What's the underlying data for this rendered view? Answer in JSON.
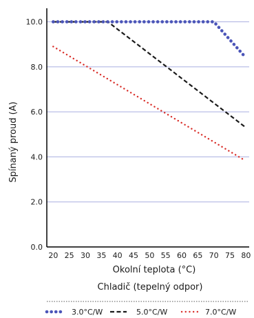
{
  "chart_data": {
    "type": "line",
    "xlabel": "Okolní teplota (°C)",
    "ylabel": "Spínaný proud (A)",
    "xlim": [
      18,
      81
    ],
    "ylim": [
      0,
      10.6
    ],
    "x_ticks": [
      "20",
      "25",
      "30",
      "35",
      "40",
      "45",
      "50",
      "55",
      "60",
      "65",
      "70",
      "75",
      "80"
    ],
    "y_ticks": [
      "0.0",
      "2.0",
      "4.0",
      "6.0",
      "8.0",
      "10.0"
    ],
    "grid": "horizontal",
    "legend_title": "Chladič (tepelný odpor)",
    "legend_position": "bottom",
    "series": [
      {
        "name": "3.0°C/W",
        "style": "dotted-round",
        "color": "#4b55b8",
        "points": [
          [
            20,
            10.0
          ],
          [
            70,
            10.0
          ],
          [
            80,
            8.4
          ]
        ]
      },
      {
        "name": "5.0°C/W",
        "style": "dashed",
        "color": "#1a1a1a",
        "points": [
          [
            20,
            10.0
          ],
          [
            37,
            10.0
          ],
          [
            80,
            5.3
          ]
        ]
      },
      {
        "name": "7.0°C/W",
        "style": "dotted-small",
        "color": "#d9302b",
        "points": [
          [
            20,
            8.9
          ],
          [
            79,
            3.9
          ]
        ]
      }
    ]
  }
}
